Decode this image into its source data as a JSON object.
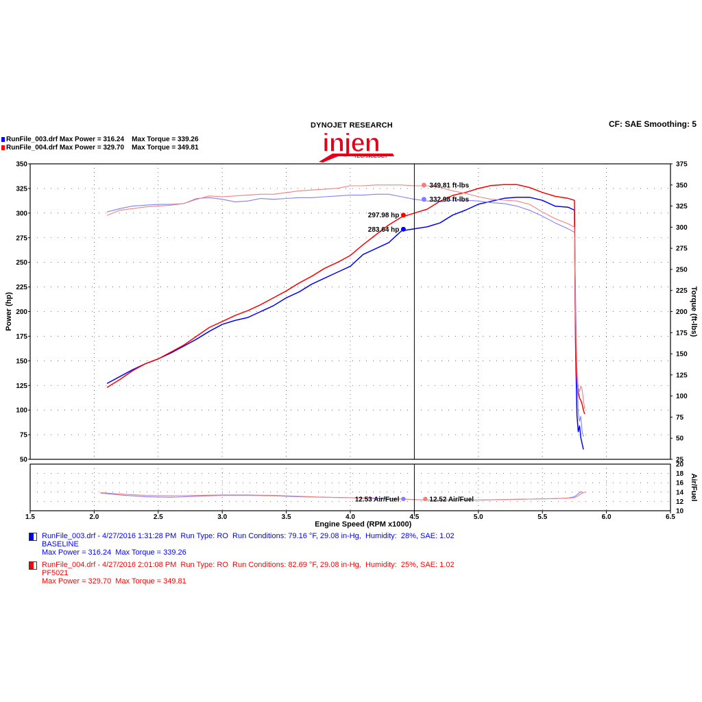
{
  "header": {
    "settings": "CF: SAE  Smoothing: 5",
    "brand_title": "DYNOJET RESEARCH",
    "logo_text": "injen",
    "logo_subtext": "TECHNOLOGY"
  },
  "top_runs": [
    {
      "file": "RunFile_003.drf",
      "max_power_label": "Max Power = 316.24",
      "max_torque_label": "Max Torque = 339.26",
      "color": "#0000ff"
    },
    {
      "file": "RunFile_004.drf",
      "max_power_label": "Max Power = 329.70",
      "max_torque_label": "Max Torque = 349.81",
      "color": "#ff0000"
    }
  ],
  "legend": [
    {
      "color": "#0000ff",
      "line1": "RunFile_003.drf - 4/27/2016 1:31:28 PM  Run Type: RO  Run Conditions: 79.16 °F, 29.08 in-Hg,  Humidity:  28%, SAE: 1.02",
      "line2": "BASELINE",
      "line3": "Max Power = 316.24  Max Torque = 339.26"
    },
    {
      "color": "#ff0000",
      "line1": "RunFile_004.drf - 4/27/2016 2:01:08 PM  Run Type: RO  Run Conditions: 82.69 °F, 29.08 in-Hg,  Humidity:  25%, SAE: 1.02",
      "line2": "PF5021",
      "line3": "Max Power = 329.70  Max Torque = 349.81"
    }
  ],
  "chart_data": {
    "type": "line",
    "xlabel": "Engine Speed (RPM x1000)",
    "xlim": [
      1.5,
      6.5
    ],
    "x_ticks": [
      "1.5",
      "2.0",
      "2.5",
      "3.0",
      "3.5",
      "4.0",
      "4.5",
      "5.0",
      "5.5",
      "6.0",
      "6.5"
    ],
    "main_chart": {
      "ylabel_left": "Power (hp)",
      "ylabel_right": "Torque (ft-lbs)",
      "ylim_left": [
        50,
        350
      ],
      "ylim_right": [
        25,
        375
      ],
      "y_ticks_left": [
        "50",
        "75",
        "100",
        "125",
        "150",
        "175",
        "200",
        "225",
        "250",
        "275",
        "300",
        "325",
        "350"
      ],
      "y_ticks_right": [
        "25",
        "50",
        "75",
        "100",
        "125",
        "150",
        "175",
        "200",
        "225",
        "250",
        "275",
        "300",
        "325",
        "350",
        "375"
      ],
      "grid": true,
      "cursor_x": 4.5,
      "cursor_labels": [
        {
          "text": "349.81 ft-lbs",
          "color": "#f08080",
          "y": 349.8,
          "axis": "right"
        },
        {
          "text": "332.98 ft-lbs",
          "color": "#7f7fff",
          "y": 332.98,
          "axis": "right"
        },
        {
          "text": "297.98 hp",
          "color": "#ff0000",
          "y": 297.98,
          "axis": "left"
        },
        {
          "text": "283.64 hp",
          "color": "#0000ff",
          "y": 283.64,
          "axis": "left"
        }
      ],
      "series": [
        {
          "name": "RunFile_003.drf",
          "quantity": "power",
          "axis": "left",
          "color": "#0000ff",
          "x": [
            2.1,
            2.2,
            2.3,
            2.4,
            2.5,
            2.6,
            2.7,
            2.8,
            2.9,
            3.0,
            3.1,
            3.2,
            3.3,
            3.4,
            3.5,
            3.6,
            3.7,
            3.8,
            3.9,
            4.0,
            4.1,
            4.2,
            4.3,
            4.4,
            4.5,
            4.6,
            4.7,
            4.8,
            4.9,
            5.0,
            5.1,
            5.2,
            5.3,
            5.4,
            5.5,
            5.6,
            5.7,
            5.75,
            5.76,
            5.77,
            5.78,
            5.79,
            5.8,
            5.81,
            5.82
          ],
          "y": [
            127,
            134,
            141,
            147,
            152,
            158,
            165,
            172,
            180,
            187,
            191,
            194,
            200,
            206,
            214,
            220,
            228,
            234,
            240,
            246,
            258,
            264,
            270,
            282,
            284,
            286,
            290,
            298,
            303,
            309,
            312,
            315,
            316,
            316,
            313,
            307,
            306,
            303,
            155,
            95,
            78,
            84,
            72,
            66,
            60
          ]
        },
        {
          "name": "RunFile_004.drf",
          "quantity": "power",
          "axis": "left",
          "color": "#ff0000",
          "x": [
            2.1,
            2.2,
            2.3,
            2.4,
            2.5,
            2.6,
            2.7,
            2.8,
            2.9,
            3.0,
            3.1,
            3.2,
            3.3,
            3.4,
            3.5,
            3.6,
            3.7,
            3.8,
            3.9,
            4.0,
            4.1,
            4.2,
            4.3,
            4.4,
            4.5,
            4.6,
            4.7,
            4.8,
            4.9,
            5.0,
            5.1,
            5.2,
            5.3,
            5.4,
            5.5,
            5.6,
            5.7,
            5.75,
            5.76,
            5.77,
            5.78,
            5.79,
            5.8,
            5.81,
            5.82,
            5.83
          ],
          "y": [
            123,
            131,
            140,
            147,
            152,
            159,
            166,
            175,
            184,
            190,
            196,
            201,
            207,
            214,
            221,
            229,
            236,
            244,
            250,
            257,
            268,
            278,
            288,
            296,
            300,
            304,
            312,
            318,
            321,
            325,
            328,
            329,
            329,
            326,
            321,
            317,
            315,
            313,
            155,
            128,
            118,
            112,
            110,
            106,
            100,
            96
          ]
        },
        {
          "name": "RunFile_003.drf",
          "quantity": "torque",
          "axis": "right",
          "color": "#7f7fff",
          "x": [
            2.1,
            2.2,
            2.3,
            2.4,
            2.5,
            2.6,
            2.7,
            2.8,
            2.9,
            3.0,
            3.1,
            3.2,
            3.3,
            3.4,
            3.5,
            3.6,
            3.7,
            3.8,
            3.9,
            4.0,
            4.1,
            4.2,
            4.3,
            4.4,
            4.5,
            4.6,
            4.7,
            4.8,
            4.9,
            5.0,
            5.1,
            5.2,
            5.3,
            5.4,
            5.5,
            5.6,
            5.7,
            5.75,
            5.76,
            5.77,
            5.78,
            5.79,
            5.8,
            5.81,
            5.82
          ],
          "y": [
            318,
            322,
            325,
            326,
            327,
            327,
            328,
            334,
            335,
            333,
            330,
            331,
            334,
            333,
            334,
            335,
            335,
            336,
            337,
            338,
            338,
            339,
            339,
            336,
            333,
            331,
            330,
            332,
            332,
            331,
            329,
            328,
            325,
            320,
            313,
            305,
            298,
            294,
            210,
            130,
            80,
            70,
            76,
            58,
            52
          ]
        },
        {
          "name": "RunFile_004.drf",
          "quantity": "torque",
          "axis": "right",
          "color": "#f08080",
          "x": [
            2.1,
            2.2,
            2.3,
            2.4,
            2.5,
            2.6,
            2.7,
            2.8,
            2.9,
            3.0,
            3.1,
            3.2,
            3.3,
            3.4,
            3.5,
            3.6,
            3.7,
            3.8,
            3.9,
            4.0,
            4.1,
            4.2,
            4.3,
            4.4,
            4.5,
            4.6,
            4.7,
            4.8,
            4.9,
            5.0,
            5.1,
            5.2,
            5.3,
            5.4,
            5.5,
            5.6,
            5.7,
            5.75,
            5.76,
            5.77,
            5.78,
            5.79,
            5.8,
            5.81,
            5.82,
            5.83
          ],
          "y": [
            314,
            320,
            322,
            324,
            325,
            326,
            328,
            333,
            337,
            336,
            337,
            338,
            339,
            339,
            341,
            343,
            344,
            345,
            346,
            349,
            349,
            350,
            350,
            350,
            349,
            349,
            347,
            343,
            340,
            336,
            333,
            332,
            331,
            327,
            318,
            310,
            304,
            300,
            190,
            130,
            110,
            105,
            112,
            108,
            95,
            85
          ]
        }
      ]
    },
    "afr_chart": {
      "ylabel_right": "Air/Fuel",
      "ylim_right": [
        10,
        20
      ],
      "y_ticks_right": [
        "10",
        "12",
        "14",
        "16",
        "18",
        "20"
      ],
      "grid": true,
      "cursor_labels": [
        {
          "text": "12.53 Air/Fuel",
          "color": "#7f7fff",
          "y": 12.53
        },
        {
          "text": "12.52 Air/Fuel",
          "color": "#f08080",
          "y": 12.52
        }
      ],
      "series": [
        {
          "name": "RunFile_003.drf",
          "color": "#7f7fff",
          "x": [
            2.05,
            2.2,
            2.4,
            2.6,
            2.8,
            3.0,
            3.2,
            3.4,
            3.6,
            3.8,
            4.0,
            4.2,
            4.4,
            4.6,
            4.8,
            5.0,
            5.2,
            5.4,
            5.6,
            5.7,
            5.75,
            5.78,
            5.8,
            5.82
          ],
          "y": [
            13.8,
            13.4,
            13.0,
            12.9,
            13.1,
            13.3,
            13.3,
            13.2,
            13.0,
            12.9,
            12.8,
            12.7,
            12.5,
            12.3,
            12.3,
            12.3,
            12.4,
            12.5,
            12.6,
            12.7,
            13.0,
            13.6,
            14.1,
            13.8
          ]
        },
        {
          "name": "RunFile_004.drf",
          "color": "#f08080",
          "x": [
            2.05,
            2.2,
            2.4,
            2.6,
            2.8,
            3.0,
            3.2,
            3.4,
            3.6,
            3.8,
            4.0,
            4.2,
            4.4,
            4.6,
            4.8,
            5.0,
            5.2,
            5.4,
            5.6,
            5.7,
            5.75,
            5.78,
            5.8,
            5.82,
            5.84
          ],
          "y": [
            13.9,
            13.6,
            13.3,
            13.2,
            13.3,
            13.4,
            13.4,
            13.3,
            13.1,
            12.9,
            12.8,
            12.6,
            12.5,
            12.3,
            12.3,
            12.3,
            12.4,
            12.5,
            12.6,
            12.7,
            12.8,
            13.2,
            13.6,
            13.9,
            14.0
          ]
        }
      ]
    }
  }
}
